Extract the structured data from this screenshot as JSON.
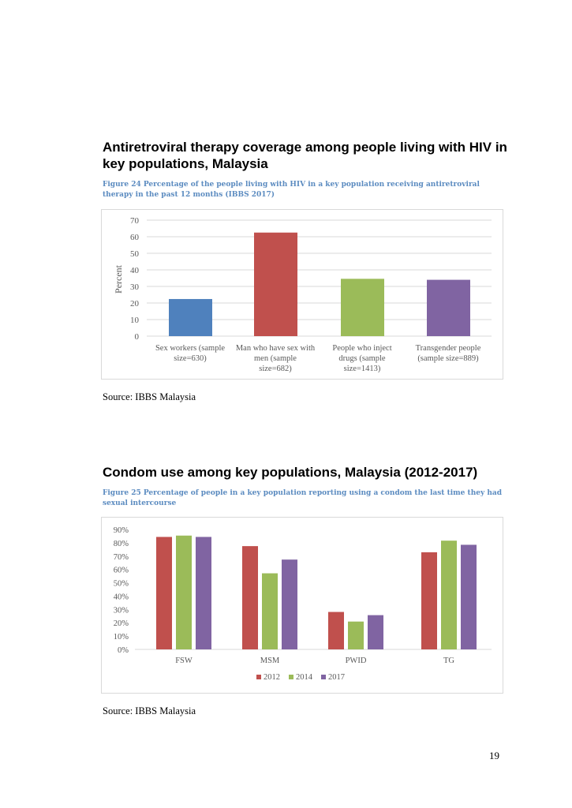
{
  "section1": {
    "heading": "Antiretroviral therapy coverage among people living with HIV in key populations, Malaysia",
    "caption": "Figure 24 Percentage of the people living with HIV in a key population receiving antiretroviral therapy in the past 12 months (IBBS 2017)",
    "source": "Source: IBBS Malaysia"
  },
  "section2": {
    "heading": "Condom use among key populations, Malaysia (2012-2017)",
    "caption": "Figure 25 Percentage of people in a key population reporting using a condom the last time they had sexual intercourse",
    "source": "Source: IBBS Malaysia"
  },
  "page_number": "19",
  "chart_data": [
    {
      "type": "bar",
      "title": "",
      "ylabel": "Percent",
      "xlabel": "",
      "ylim": [
        0,
        70
      ],
      "yticks": [
        "0",
        "10",
        "20",
        "30",
        "40",
        "50",
        "60",
        "70"
      ],
      "grid": true,
      "categories": [
        [
          "Sex workers (sample",
          "size=630)"
        ],
        [
          "Man who have sex with",
          "men (sample",
          "size=682)"
        ],
        [
          "People who inject",
          "drugs (sample",
          "size=1413)"
        ],
        [
          "Transgender people",
          "(sample size=889)"
        ]
      ],
      "values": [
        22.4,
        62.5,
        34.6,
        34.0
      ],
      "colors": [
        "#4f81bd",
        "#c0504d",
        "#9bbb59",
        "#8064a2"
      ]
    },
    {
      "type": "bar",
      "title": "",
      "ylabel": "",
      "xlabel": "",
      "ylim": [
        0,
        90
      ],
      "yticks": [
        "0%",
        "10%",
        "20%",
        "30%",
        "40%",
        "50%",
        "60%",
        "70%",
        "80%",
        "90%"
      ],
      "grid": false,
      "legend": "bottom",
      "categories": [
        "FSW",
        "MSM",
        "PWID",
        "TG"
      ],
      "series": [
        {
          "name": "2012",
          "color": "#c0504d",
          "values": [
            84.4,
            77.5,
            28.1,
            72.9
          ]
        },
        {
          "name": "2014",
          "color": "#9bbb59",
          "values": [
            85.4,
            57.1,
            20.9,
            81.6
          ]
        },
        {
          "name": "2017",
          "color": "#8064a2",
          "values": [
            84.4,
            67.4,
            25.7,
            78.5
          ]
        }
      ]
    }
  ]
}
